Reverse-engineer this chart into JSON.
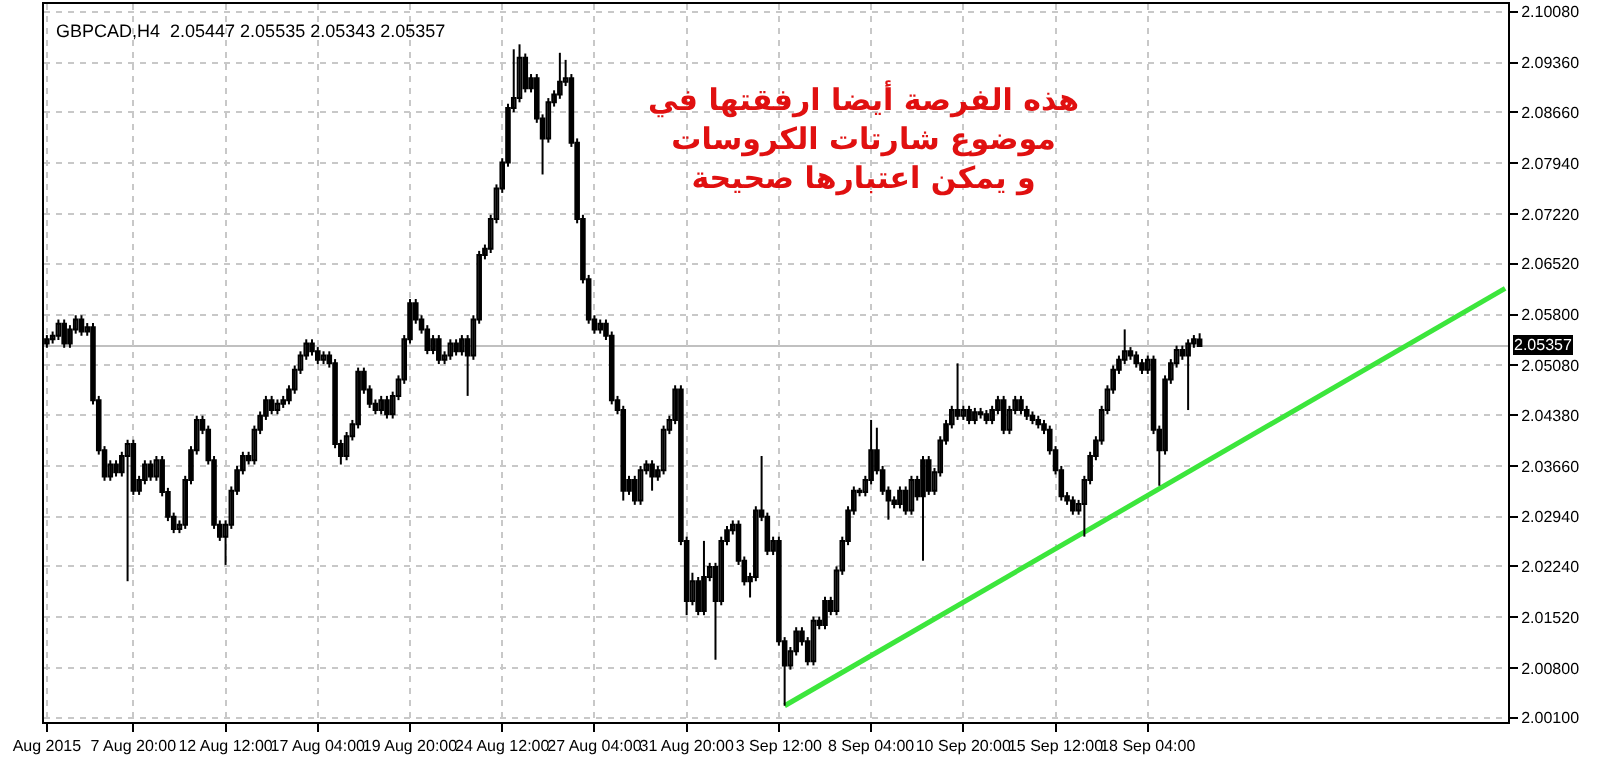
{
  "chart_data": {
    "type": "candlestick",
    "title": "GBPCAD,H4  2.05447 2.05535 2.05343 2.05357",
    "color": "#000000",
    "categories": [
      "Aug 2015",
      null,
      null,
      null,
      null,
      null,
      null,
      null,
      null,
      null,
      null,
      null,
      null,
      null,
      null,
      "7 Aug 20:00",
      null,
      null,
      null,
      null,
      null,
      null,
      null,
      null,
      null,
      null,
      null,
      null,
      null,
      null,
      null,
      "12 Aug 12:00",
      null,
      null,
      null,
      null,
      null,
      null,
      null,
      null,
      null,
      null,
      null,
      null,
      null,
      null,
      null,
      "17 Aug 04:00",
      null,
      null,
      null,
      null,
      null,
      null,
      null,
      null,
      null,
      null,
      null,
      null,
      null,
      null,
      null,
      "19 Aug 20:00",
      null,
      null,
      null,
      null,
      null,
      null,
      null,
      null,
      null,
      null,
      null,
      null,
      null,
      null,
      null,
      "24 Aug 12:00",
      null,
      null,
      null,
      null,
      null,
      null,
      null,
      null,
      null,
      null,
      null,
      null,
      null,
      null,
      null,
      "27 Aug 04:00",
      null,
      null,
      null,
      null,
      null,
      null,
      null,
      null,
      null,
      null,
      null,
      null,
      null,
      null,
      null,
      "31 Aug 20:00",
      null,
      null,
      null,
      null,
      null,
      null,
      null,
      null,
      null,
      null,
      null,
      null,
      null,
      null,
      null,
      "3 Sep 12:00",
      null,
      null,
      null,
      null,
      null,
      null,
      null,
      null,
      null,
      null,
      null,
      null,
      null,
      null,
      null,
      "8 Sep 04:00",
      null,
      null,
      null,
      null,
      null,
      null,
      null,
      null,
      null,
      null,
      null,
      null,
      null,
      null,
      null,
      "10 Sep 20:00",
      null,
      null,
      null,
      null,
      null,
      null,
      null,
      null,
      null,
      null,
      null,
      null,
      null,
      null,
      null,
      "15 Sep 12:00",
      null,
      null,
      null,
      null,
      null,
      null,
      null,
      null,
      null,
      null,
      null,
      null,
      null,
      null,
      null,
      "18 Sep 04:00",
      null,
      null,
      null,
      null,
      null,
      null,
      null,
      null,
      null,
      null,
      null,
      null,
      null,
      null,
      null,
      null,
      null,
      null,
      null,
      null,
      null,
      null,
      null,
      null,
      null,
      null,
      null,
      null,
      null,
      null,
      null,
      null,
      null,
      null,
      null,
      null,
      null,
      null,
      null,
      null,
      null,
      null,
      null,
      null,
      null,
      null,
      null,
      null,
      null,
      null,
      null,
      null,
      null,
      null,
      null,
      null,
      null,
      null,
      null,
      null,
      null,
      null
    ],
    "ohlc": [
      [
        2.0539,
        2.0551,
        2.0533,
        2.0545
      ],
      [
        2.0545,
        2.0556,
        2.0539,
        2.055
      ],
      [
        2.055,
        2.0573,
        2.0544,
        2.0567
      ],
      [
        2.0567,
        2.0573,
        2.0533,
        2.0539
      ],
      [
        2.0539,
        2.0565,
        2.0533,
        2.0559
      ],
      [
        2.0559,
        2.0579,
        2.0553,
        2.0573
      ],
      [
        2.0573,
        2.0579,
        2.055,
        2.0556
      ],
      [
        2.0556,
        2.0568,
        2.055,
        2.0562
      ],
      [
        2.0562,
        2.0568,
        2.0453,
        2.0459
      ],
      [
        2.0459,
        2.0465,
        2.0382,
        2.0388
      ],
      [
        2.0388,
        2.0394,
        2.0345,
        2.0351
      ],
      [
        2.0351,
        2.0374,
        2.0345,
        2.0368
      ],
      [
        2.0368,
        2.0374,
        2.0351,
        2.0357
      ],
      [
        2.0357,
        2.0386,
        2.0351,
        2.038
      ],
      [
        2.038,
        2.0403,
        2.0203,
        2.0397
      ],
      [
        2.0397,
        2.0403,
        2.0325,
        2.0331
      ],
      [
        2.0331,
        2.0352,
        2.0325,
        2.0346
      ],
      [
        2.0346,
        2.0374,
        2.034,
        2.0368
      ],
      [
        2.0368,
        2.0374,
        2.0345,
        2.0351
      ],
      [
        2.0351,
        2.038,
        2.0345,
        2.0374
      ],
      [
        2.0374,
        2.038,
        2.0323,
        2.0329
      ],
      [
        2.0329,
        2.0335,
        2.0288,
        2.0294
      ],
      [
        2.0294,
        2.03,
        2.0271,
        2.0277
      ],
      [
        2.0277,
        2.0289,
        2.0271,
        2.0283
      ],
      [
        2.0283,
        2.0352,
        2.0277,
        2.0346
      ],
      [
        2.0346,
        2.0394,
        2.034,
        2.0388
      ],
      [
        2.0388,
        2.0437,
        2.0382,
        2.0431
      ],
      [
        2.0431,
        2.0437,
        2.0411,
        2.0417
      ],
      [
        2.0417,
        2.0423,
        2.0368,
        2.0374
      ],
      [
        2.0374,
        2.038,
        2.0277,
        2.0283
      ],
      [
        2.0283,
        2.0289,
        2.026,
        2.0266
      ],
      [
        2.0266,
        2.0289,
        2.0226,
        2.0283
      ],
      [
        2.0283,
        2.0337,
        2.0277,
        2.0331
      ],
      [
        2.0331,
        2.0366,
        2.0325,
        2.036
      ],
      [
        2.036,
        2.0386,
        2.0354,
        2.038
      ],
      [
        2.038,
        2.0386,
        2.0368,
        2.0374
      ],
      [
        2.0374,
        2.0423,
        2.0368,
        2.0417
      ],
      [
        2.0417,
        2.0443,
        2.0411,
        2.0437
      ],
      [
        2.0437,
        2.0465,
        2.0431,
        2.0459
      ],
      [
        2.0459,
        2.0465,
        2.0439,
        2.0445
      ],
      [
        2.0445,
        2.046,
        2.0439,
        2.0454
      ],
      [
        2.0454,
        2.0465,
        2.0448,
        2.0459
      ],
      [
        2.0459,
        2.048,
        2.0453,
        2.0474
      ],
      [
        2.0474,
        2.0508,
        2.0468,
        2.0502
      ],
      [
        2.0502,
        2.0528,
        2.0496,
        2.0522
      ],
      [
        2.0522,
        2.0545,
        2.0516,
        2.0539
      ],
      [
        2.0539,
        2.0545,
        2.0522,
        2.0528
      ],
      [
        2.0528,
        2.0534,
        2.051,
        2.0516
      ],
      [
        2.0516,
        2.0528,
        2.051,
        2.0522
      ],
      [
        2.0522,
        2.0528,
        2.0505,
        2.0511
      ],
      [
        2.0511,
        2.0517,
        2.0391,
        2.0397
      ],
      [
        2.0397,
        2.0403,
        2.0368,
        2.038
      ],
      [
        2.038,
        2.0414,
        2.0374,
        2.0408
      ],
      [
        2.0408,
        2.0431,
        2.0402,
        2.0425
      ],
      [
        2.0425,
        2.0505,
        2.0419,
        2.0499
      ],
      [
        2.0499,
        2.0505,
        2.0468,
        2.0474
      ],
      [
        2.0474,
        2.048,
        2.0448,
        2.0454
      ],
      [
        2.0454,
        2.046,
        2.0439,
        2.0445
      ],
      [
        2.0445,
        2.0465,
        2.0439,
        2.0459
      ],
      [
        2.0459,
        2.0465,
        2.0433,
        2.0439
      ],
      [
        2.0439,
        2.0471,
        2.0433,
        2.0465
      ],
      [
        2.0465,
        2.0494,
        2.0459,
        2.0488
      ],
      [
        2.0488,
        2.0551,
        2.0482,
        2.0545
      ],
      [
        2.0545,
        2.0602,
        2.0539,
        2.0596
      ],
      [
        2.0596,
        2.0602,
        2.0567,
        2.0573
      ],
      [
        2.0573,
        2.0579,
        2.0553,
        2.0559
      ],
      [
        2.0559,
        2.0565,
        2.0524,
        2.053
      ],
      [
        2.053,
        2.0551,
        2.0524,
        2.0545
      ],
      [
        2.0545,
        2.0551,
        2.051,
        2.0516
      ],
      [
        2.0516,
        2.0528,
        2.051,
        2.0522
      ],
      [
        2.0522,
        2.0545,
        2.0516,
        2.0539
      ],
      [
        2.0539,
        2.0545,
        2.0522,
        2.0528
      ],
      [
        2.0528,
        2.0551,
        2.0522,
        2.0545
      ],
      [
        2.0545,
        2.0551,
        2.0465,
        2.0522
      ],
      [
        2.0522,
        2.0579,
        2.0516,
        2.0573
      ],
      [
        2.0573,
        2.067,
        2.0567,
        2.0664
      ],
      [
        2.0664,
        2.0679,
        2.0658,
        2.0673
      ],
      [
        2.0673,
        2.0721,
        2.0667,
        2.0715
      ],
      [
        2.0715,
        2.0764,
        2.0709,
        2.0758
      ],
      [
        2.0758,
        2.0801,
        2.0752,
        2.0795
      ],
      [
        2.0795,
        2.0878,
        2.0789,
        2.0872
      ],
      [
        2.0872,
        2.0955,
        2.0866,
        2.0886
      ],
      [
        2.0886,
        2.0962,
        2.088,
        2.0943
      ],
      [
        2.0943,
        2.0949,
        2.0894,
        2.09
      ],
      [
        2.09,
        2.092,
        2.0894,
        2.0914
      ],
      [
        2.0914,
        2.092,
        2.0851,
        2.0857
      ],
      [
        2.0857,
        2.0863,
        2.0778,
        2.0829
      ],
      [
        2.0829,
        2.0886,
        2.0823,
        2.088
      ],
      [
        2.088,
        2.0897,
        2.0874,
        2.0891
      ],
      [
        2.0891,
        2.095,
        2.0885,
        2.0909
      ],
      [
        2.0909,
        2.094,
        2.0903,
        2.0914
      ],
      [
        2.0914,
        2.092,
        2.0817,
        2.0823
      ],
      [
        2.0823,
        2.0829,
        2.0709,
        2.0715
      ],
      [
        2.0715,
        2.0721,
        2.0624,
        2.063
      ],
      [
        2.063,
        2.0636,
        2.0567,
        2.0573
      ],
      [
        2.0573,
        2.0579,
        2.0553,
        2.0559
      ],
      [
        2.0559,
        2.0573,
        2.0553,
        2.0567
      ],
      [
        2.0567,
        2.0573,
        2.0544,
        2.055
      ],
      [
        2.055,
        2.0556,
        2.0453,
        2.0459
      ],
      [
        2.0459,
        2.0465,
        2.0439,
        2.0445
      ],
      [
        2.0445,
        2.0451,
        2.0317,
        2.0331
      ],
      [
        2.0331,
        2.0352,
        2.0325,
        2.0346
      ],
      [
        2.0346,
        2.0352,
        2.0311,
        2.0317
      ],
      [
        2.0317,
        2.0366,
        2.0311,
        2.036
      ],
      [
        2.036,
        2.0374,
        2.0354,
        2.0368
      ],
      [
        2.0368,
        2.0374,
        2.0331,
        2.0351
      ],
      [
        2.0351,
        2.0366,
        2.0345,
        2.036
      ],
      [
        2.036,
        2.0423,
        2.0354,
        2.0417
      ],
      [
        2.0417,
        2.0437,
        2.0411,
        2.0431
      ],
      [
        2.0431,
        2.048,
        2.0425,
        2.0474
      ],
      [
        2.0474,
        2.048,
        2.0254,
        2.026
      ],
      [
        2.026,
        2.0266,
        2.0155,
        2.0175
      ],
      [
        2.0175,
        2.0215,
        2.0169,
        2.0203
      ],
      [
        2.0203,
        2.0209,
        2.0155,
        2.0161
      ],
      [
        2.0161,
        2.026,
        2.0155,
        2.0209
      ],
      [
        2.0209,
        2.0229,
        2.0203,
        2.0223
      ],
      [
        2.0223,
        2.0229,
        2.0092,
        2.0175
      ],
      [
        2.0175,
        2.0266,
        2.0169,
        2.026
      ],
      [
        2.026,
        2.0281,
        2.0254,
        2.0275
      ],
      [
        2.0275,
        2.0289,
        2.0269,
        2.0283
      ],
      [
        2.0283,
        2.0289,
        2.0226,
        2.0232
      ],
      [
        2.0232,
        2.0238,
        2.0197,
        2.0203
      ],
      [
        2.0203,
        2.0215,
        2.018,
        2.0209
      ],
      [
        2.0209,
        2.0309,
        2.0203,
        2.0303
      ],
      [
        2.0303,
        2.038,
        2.0288,
        2.0294
      ],
      [
        2.0294,
        2.03,
        2.024,
        2.0246
      ],
      [
        2.0246,
        2.0266,
        2.024,
        2.026
      ],
      [
        2.026,
        2.0266,
        2.0112,
        2.0118
      ],
      [
        2.0118,
        2.0124,
        2.0027,
        2.0084
      ],
      [
        2.0084,
        2.011,
        2.0078,
        2.0104
      ],
      [
        2.0104,
        2.0138,
        2.0098,
        2.0132
      ],
      [
        2.0132,
        2.0138,
        2.0112,
        2.0118
      ],
      [
        2.0118,
        2.0124,
        2.0084,
        2.009
      ],
      [
        2.009,
        2.0153,
        2.0084,
        2.0147
      ],
      [
        2.0147,
        2.0153,
        2.0135,
        2.0141
      ],
      [
        2.0141,
        2.0181,
        2.0135,
        2.0175
      ],
      [
        2.0175,
        2.0181,
        2.0155,
        2.0161
      ],
      [
        2.0161,
        2.0224,
        2.0155,
        2.0218
      ],
      [
        2.0218,
        2.0266,
        2.0212,
        2.026
      ],
      [
        2.026,
        2.0309,
        2.0254,
        2.0303
      ],
      [
        2.0303,
        2.0337,
        2.0297,
        2.0331
      ],
      [
        2.0331,
        2.0335,
        2.0323,
        2.0329
      ],
      [
        2.0329,
        2.0352,
        2.0323,
        2.0346
      ],
      [
        2.0346,
        2.0431,
        2.034,
        2.0388
      ],
      [
        2.0388,
        2.042,
        2.0354,
        2.036
      ],
      [
        2.036,
        2.0366,
        2.0325,
        2.0331
      ],
      [
        2.0331,
        2.0337,
        2.029,
        2.0317
      ],
      [
        2.0317,
        2.0323,
        2.0306,
        2.0312
      ],
      [
        2.0312,
        2.0337,
        2.0306,
        2.0331
      ],
      [
        2.0331,
        2.0337,
        2.0297,
        2.0303
      ],
      [
        2.0303,
        2.0352,
        2.0297,
        2.0346
      ],
      [
        2.0346,
        2.0352,
        2.0317,
        2.0323
      ],
      [
        2.0323,
        2.038,
        2.0232,
        2.0374
      ],
      [
        2.0374,
        2.038,
        2.0325,
        2.0331
      ],
      [
        2.0331,
        2.0363,
        2.0325,
        2.0357
      ],
      [
        2.0357,
        2.0408,
        2.0351,
        2.0402
      ],
      [
        2.0402,
        2.0431,
        2.0396,
        2.0425
      ],
      [
        2.0425,
        2.0451,
        2.0419,
        2.0445
      ],
      [
        2.0445,
        2.0511,
        2.0431,
        2.0437
      ],
      [
        2.0437,
        2.0451,
        2.0431,
        2.0445
      ],
      [
        2.0445,
        2.0451,
        2.0425,
        2.0431
      ],
      [
        2.0431,
        2.0448,
        2.0425,
        2.0442
      ],
      [
        2.0442,
        2.0448,
        2.0433,
        2.0439
      ],
      [
        2.0439,
        2.0445,
        2.0425,
        2.0431
      ],
      [
        2.0431,
        2.0451,
        2.0425,
        2.0445
      ],
      [
        2.0445,
        2.0465,
        2.0439,
        2.0459
      ],
      [
        2.0459,
        2.0465,
        2.0411,
        2.0417
      ],
      [
        2.0417,
        2.0451,
        2.0411,
        2.0445
      ],
      [
        2.0445,
        2.0465,
        2.0439,
        2.0459
      ],
      [
        2.0459,
        2.0465,
        2.0439,
        2.0445
      ],
      [
        2.0445,
        2.0451,
        2.0431,
        2.0437
      ],
      [
        2.0437,
        2.0443,
        2.0425,
        2.0431
      ],
      [
        2.0431,
        2.0437,
        2.0419,
        2.0425
      ],
      [
        2.0425,
        2.0431,
        2.0411,
        2.0417
      ],
      [
        2.0417,
        2.0423,
        2.0382,
        2.0388
      ],
      [
        2.0388,
        2.0394,
        2.0354,
        2.036
      ],
      [
        2.036,
        2.0366,
        2.0317,
        2.0323
      ],
      [
        2.0323,
        2.0329,
        2.0311,
        2.0317
      ],
      [
        2.0317,
        2.0323,
        2.0297,
        2.0303
      ],
      [
        2.0303,
        2.0318,
        2.0297,
        2.0312
      ],
      [
        2.0312,
        2.0352,
        2.0266,
        2.0346
      ],
      [
        2.0346,
        2.0386,
        2.034,
        2.038
      ],
      [
        2.038,
        2.0408,
        2.0374,
        2.0402
      ],
      [
        2.0402,
        2.0451,
        2.0396,
        2.0445
      ],
      [
        2.0445,
        2.048,
        2.0439,
        2.0474
      ],
      [
        2.0474,
        2.0508,
        2.0468,
        2.0502
      ],
      [
        2.0502,
        2.0522,
        2.0496,
        2.0516
      ],
      [
        2.0516,
        2.0559,
        2.051,
        2.0528
      ],
      [
        2.0528,
        2.0534,
        2.0516,
        2.0522
      ],
      [
        2.0522,
        2.0528,
        2.0505,
        2.0511
      ],
      [
        2.0511,
        2.0517,
        2.0496,
        2.0502
      ],
      [
        2.0502,
        2.0522,
        2.0496,
        2.0516
      ],
      [
        2.0516,
        2.0522,
        2.0411,
        2.0417
      ],
      [
        2.0417,
        2.0423,
        2.0338,
        2.0388
      ],
      [
        2.0388,
        2.0494,
        2.0382,
        2.0488
      ],
      [
        2.0488,
        2.0517,
        2.0482,
        2.0511
      ],
      [
        2.0511,
        2.0536,
        2.0505,
        2.053
      ],
      [
        2.053,
        2.0536,
        2.0516,
        2.0522
      ],
      [
        2.0522,
        2.0545,
        2.0445,
        2.0539
      ],
      [
        2.0539,
        2.0551,
        2.0533,
        2.0545
      ],
      [
        2.05447,
        2.05535,
        2.05343,
        2.05357
      ],
      null,
      null,
      null,
      null,
      null,
      null,
      null,
      null,
      null,
      null,
      null,
      null,
      null,
      null,
      null,
      null,
      null,
      null,
      null,
      null,
      null,
      null,
      null,
      null,
      null,
      null,
      null,
      null,
      null,
      null,
      null,
      null,
      null,
      null,
      null,
      null,
      null,
      null,
      null,
      null,
      null,
      null,
      null,
      null,
      null,
      null,
      null,
      null,
      null,
      null,
      null,
      null,
      null
    ],
    "series": [
      {
        "type": "line",
        "color": "#3ce63c",
        "values": [
          null,
          null,
          null,
          null,
          null,
          null,
          null,
          null,
          null,
          null,
          null,
          null,
          null,
          null,
          null,
          null,
          null,
          null,
          null,
          null,
          null,
          null,
          null,
          null,
          null,
          null,
          null,
          null,
          null,
          null,
          null,
          null,
          null,
          null,
          null,
          null,
          null,
          null,
          null,
          null,
          null,
          null,
          null,
          null,
          null,
          null,
          null,
          null,
          null,
          null,
          null,
          null,
          null,
          null,
          null,
          null,
          null,
          null,
          null,
          null,
          null,
          null,
          null,
          null,
          null,
          null,
          null,
          null,
          null,
          null,
          null,
          null,
          null,
          null,
          null,
          null,
          null,
          null,
          null,
          null,
          null,
          null,
          null,
          null,
          null,
          null,
          null,
          null,
          null,
          null,
          null,
          null,
          null,
          null,
          null,
          null,
          null,
          null,
          null,
          null,
          null,
          null,
          null,
          null,
          null,
          null,
          null,
          null,
          null,
          null,
          null,
          null,
          null,
          null,
          null,
          null,
          null,
          null,
          null,
          null,
          null,
          null,
          null,
          null,
          null,
          null,
          null,
          null,
          2.0027,
          null,
          null,
          null,
          null,
          null,
          null,
          null,
          null,
          null,
          null,
          null,
          null,
          null,
          null,
          null,
          null,
          null,
          null,
          null,
          null,
          null,
          null,
          null,
          null,
          null,
          null,
          null,
          null,
          null,
          null,
          null,
          null,
          null,
          null,
          null,
          null,
          null,
          null,
          null,
          null,
          null,
          null,
          null,
          null,
          null,
          null,
          null,
          null,
          null,
          null,
          null,
          null,
          null,
          null,
          null,
          null,
          null,
          null,
          null,
          null,
          null,
          null,
          null,
          null,
          null,
          null,
          null,
          null,
          null,
          null,
          null,
          null,
          null,
          null,
          null,
          null,
          null,
          null,
          null,
          null,
          null,
          null,
          null,
          null,
          null,
          null,
          null,
          null,
          null,
          null,
          null,
          null,
          null,
          null,
          null,
          null,
          null,
          null,
          null,
          null,
          null,
          null,
          null,
          null,
          null,
          null,
          null,
          null,
          null,
          null,
          null,
          null,
          null,
          null,
          null,
          null,
          null,
          null,
          null,
          null,
          null,
          null,
          null,
          null,
          2.0617
        ]
      }
    ],
    "ylim": [
      2.0004,
      2.1019
    ],
    "yticks": [
      {
        "value": 2.1008,
        "label": "2.10080"
      },
      {
        "value": 2.0936,
        "label": "2.09360"
      },
      {
        "value": 2.0866,
        "label": "2.08660"
      },
      {
        "value": 2.0794,
        "label": "2.07940"
      },
      {
        "value": 2.0722,
        "label": "2.07220"
      },
      {
        "value": 2.0652,
        "label": "2.06520"
      },
      {
        "value": 2.058,
        "label": "2.05800"
      },
      {
        "value": 2.0508,
        "label": "2.05080"
      },
      {
        "value": 2.0438,
        "label": "2.04380"
      },
      {
        "value": 2.0366,
        "label": "2.03660"
      },
      {
        "value": 2.0294,
        "label": "2.02940"
      },
      {
        "value": 2.0224,
        "label": "2.02240"
      },
      {
        "value": 2.0152,
        "label": "2.01520"
      },
      {
        "value": 2.008,
        "label": "2.00800"
      },
      {
        "value": 2.001,
        "label": "2.00100"
      }
    ],
    "ref_lines": [
      {
        "axis": "y",
        "value": 2.05357,
        "label": "2.05357",
        "color": "#c0c0c0"
      }
    ],
    "annotations": [
      "هذه الفرصة أيضا ارفقتها في\nموضوع شارتات الكروسات\nو يمكن اعتبارها صحيحة"
    ],
    "grid": true
  }
}
